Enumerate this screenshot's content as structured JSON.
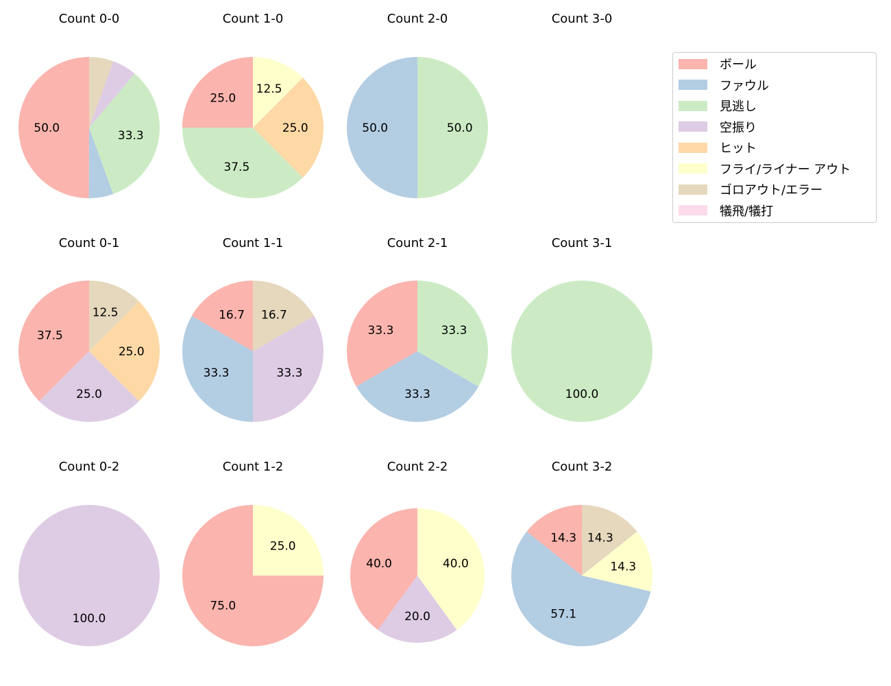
{
  "chart_data": {
    "type": "pie",
    "title": "",
    "categories": [
      "ボール",
      "ファウル",
      "見逃し",
      "空振り",
      "ヒット",
      "フライ/ライナー アウト",
      "ゴロアウト/エラー",
      "犠飛/犠打"
    ],
    "colors": [
      "#fbb4ae",
      "#b3cde3",
      "#ccebc5",
      "#decbe4",
      "#fed9a6",
      "#ffffcc",
      "#e5d8bd",
      "#fddaec"
    ],
    "legend": {
      "position": "right",
      "entries": [
        "ボール",
        "ファウル",
        "見逃し",
        "空振り",
        "ヒット",
        "フライ/ライナー アウト",
        "ゴロアウト/エラー",
        "犠飛/犠打"
      ]
    },
    "start_angle": 90,
    "direction": "counterclockwise",
    "pies": [
      {
        "title": "Count 0-0",
        "values": [
          50.0,
          5.6,
          33.3,
          5.6,
          0,
          0,
          5.6,
          0
        ],
        "labels": [
          "50.0",
          "",
          "33.3",
          "",
          "",
          "",
          "",
          ""
        ]
      },
      {
        "title": "Count 1-0",
        "values": [
          25.0,
          0,
          37.5,
          0,
          25.0,
          12.5,
          0,
          0
        ],
        "labels": [
          "25.0",
          "",
          "37.5",
          "",
          "25.0",
          "12.5",
          "",
          ""
        ]
      },
      {
        "title": "Count 2-0",
        "values": [
          0,
          50.0,
          50.0,
          0,
          0,
          0,
          0,
          0
        ],
        "labels": [
          "",
          "50.0",
          "50.0",
          "",
          "",
          "",
          "",
          ""
        ]
      },
      {
        "title": "Count 3-0",
        "values": [],
        "labels": []
      },
      {
        "title": "Count 0-1",
        "values": [
          37.5,
          0,
          0,
          25.0,
          25.0,
          0,
          12.5,
          0
        ],
        "labels": [
          "37.5",
          "",
          "",
          "25.0",
          "25.0",
          "",
          "12.5",
          ""
        ]
      },
      {
        "title": "Count 1-1",
        "values": [
          16.7,
          33.3,
          0,
          33.3,
          0,
          0,
          16.7,
          0
        ],
        "labels": [
          "16.7",
          "33.3",
          "",
          "33.3",
          "",
          "",
          "16.7",
          ""
        ]
      },
      {
        "title": "Count 2-1",
        "values": [
          33.3,
          33.3,
          33.3,
          0,
          0,
          0,
          0,
          0
        ],
        "labels": [
          "33.3",
          "33.3",
          "33.3",
          "",
          "",
          "",
          "",
          ""
        ]
      },
      {
        "title": "Count 3-1",
        "values": [
          0,
          0,
          100.0,
          0,
          0,
          0,
          0,
          0
        ],
        "labels": [
          "",
          "",
          "100.0",
          "",
          "",
          "",
          "",
          ""
        ]
      },
      {
        "title": "Count 0-2",
        "values": [
          0,
          0,
          0,
          100.0,
          0,
          0,
          0,
          0
        ],
        "labels": [
          "",
          "",
          "",
          "100.0",
          "",
          "",
          "",
          ""
        ]
      },
      {
        "title": "Count 1-2",
        "values": [
          75.0,
          0,
          0,
          0,
          0,
          25.0,
          0,
          0
        ],
        "labels": [
          "75.0",
          "",
          "",
          "",
          "",
          "25.0",
          "",
          ""
        ]
      },
      {
        "title": "Count 2-2",
        "values": [
          40.0,
          0,
          0,
          20.0,
          0,
          40.0,
          0,
          0
        ],
        "labels": [
          "40.0",
          "",
          "",
          "20.0",
          "",
          "40.0",
          "",
          ""
        ]
      },
      {
        "title": "Count 3-2",
        "values": [
          14.3,
          57.1,
          0,
          0,
          0,
          14.3,
          14.3,
          0
        ],
        "labels": [
          "14.3",
          "57.1",
          "",
          "",
          "",
          "14.3",
          "14.3",
          ""
        ]
      }
    ]
  }
}
